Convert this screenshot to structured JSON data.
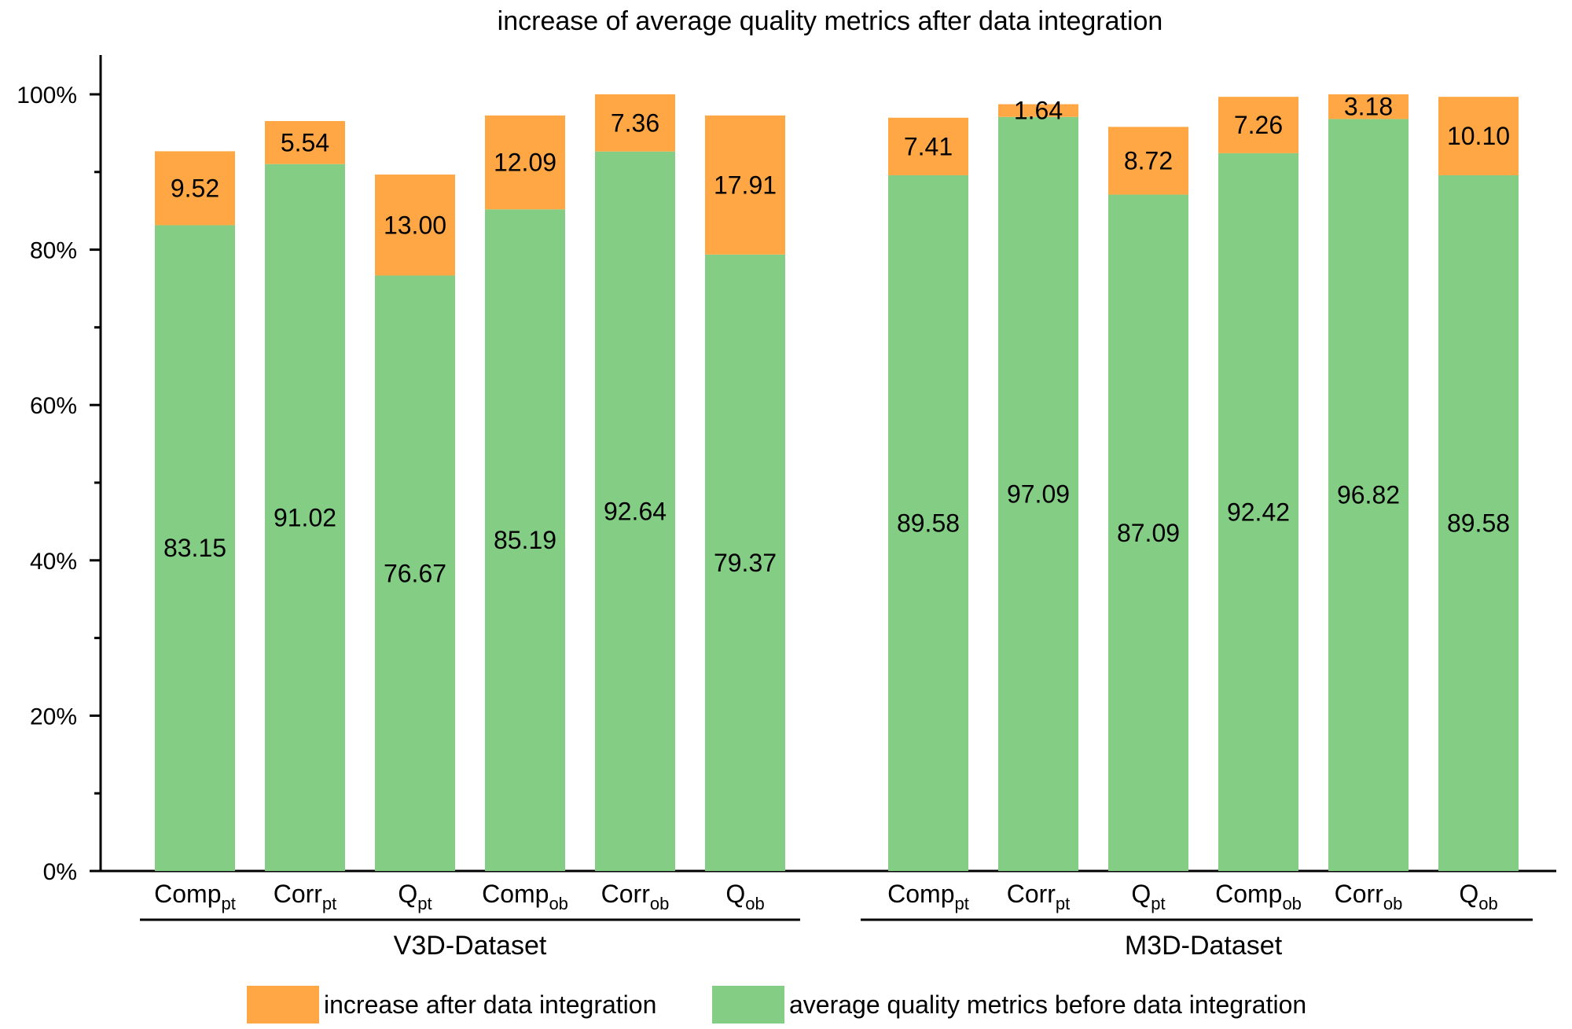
{
  "chart_data": {
    "type": "bar",
    "stacked": true,
    "title": "increase of average quality metrics after data integration",
    "xlabel": "",
    "ylabel": "",
    "ylim": [
      0,
      100
    ],
    "yticks": [
      0,
      20,
      40,
      60,
      80,
      100
    ],
    "ytick_labels": [
      "0%",
      "20%",
      "40%",
      "60%",
      "80%",
      "100%"
    ],
    "grid": false,
    "legend_position": "bottom",
    "colors": {
      "increase": "#ffa745",
      "base": "#84cd85"
    },
    "groups": [
      {
        "name": "V3D-Dataset",
        "categories": [
          {
            "base": "Comp",
            "sub": "pt"
          },
          {
            "base": "Corr",
            "sub": "pt"
          },
          {
            "base": "Q",
            "sub": "pt"
          },
          {
            "base": "Comp",
            "sub": "ob"
          },
          {
            "base": "Corr",
            "sub": "ob"
          },
          {
            "base": "Q",
            "sub": "ob"
          }
        ],
        "base_values": [
          83.15,
          91.02,
          76.67,
          85.19,
          92.64,
          79.37
        ],
        "increase_values": [
          9.52,
          5.54,
          13.0,
          12.09,
          7.36,
          17.91
        ],
        "base_labels": [
          "83.15",
          "91.02",
          "76.67",
          "85.19",
          "92.64",
          "79.37"
        ],
        "increase_labels": [
          "9.52",
          "5.54",
          "13.00",
          "12.09",
          "7.36",
          "17.91"
        ]
      },
      {
        "name": "M3D-Dataset",
        "categories": [
          {
            "base": "Comp",
            "sub": "pt"
          },
          {
            "base": "Corr",
            "sub": "pt"
          },
          {
            "base": "Q",
            "sub": "pt"
          },
          {
            "base": "Comp",
            "sub": "ob"
          },
          {
            "base": "Corr",
            "sub": "ob"
          },
          {
            "base": "Q",
            "sub": "ob"
          }
        ],
        "base_values": [
          89.58,
          97.09,
          87.09,
          92.42,
          96.82,
          89.58
        ],
        "increase_values": [
          7.41,
          1.64,
          8.72,
          7.26,
          3.18,
          10.1
        ],
        "base_labels": [
          "89.58",
          "97.09",
          "87.09",
          "92.42",
          "96.82",
          "89.58"
        ],
        "increase_labels": [
          "7.41",
          "1.64",
          "8.72",
          "7.26",
          "3.18",
          "10.10"
        ]
      }
    ],
    "series": [
      {
        "name": "increase after data integration",
        "key": "increase"
      },
      {
        "name": "average quality metrics before data integration",
        "key": "base"
      }
    ]
  }
}
